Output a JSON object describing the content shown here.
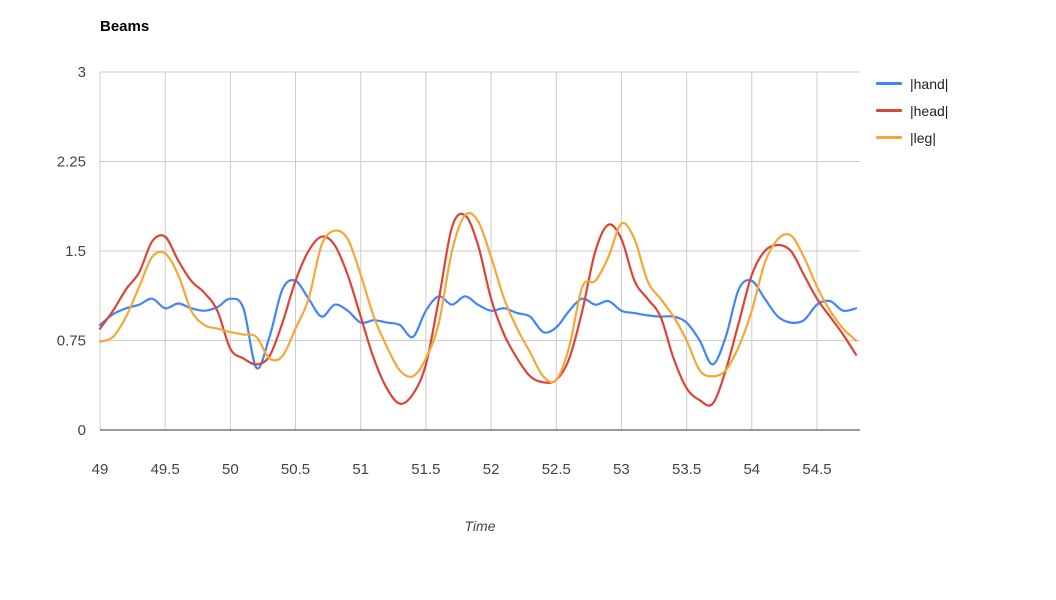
{
  "chart_data": {
    "type": "line",
    "title": "Beams",
    "xlabel": "Time",
    "ylabel": "",
    "xlim": [
      49,
      54.83
    ],
    "ylim": [
      0,
      3
    ],
    "xticks": [
      49,
      49.5,
      50,
      50.5,
      51,
      51.5,
      52,
      52.5,
      53,
      53.5,
      54,
      54.5
    ],
    "yticks": [
      0,
      0.75,
      1.5,
      2.25,
      3
    ],
    "grid": true,
    "legend_position": "right",
    "colors": {
      "grid": "#cccccc",
      "baseline": "#333333",
      "tick_text": "#444444",
      "title_text": "#000000"
    },
    "x": [
      49,
      49.1,
      49.2,
      49.3,
      49.4,
      49.5,
      49.6,
      49.7,
      49.8,
      49.9,
      50,
      50.1,
      50.2,
      50.3,
      50.4,
      50.5,
      50.6,
      50.7,
      50.8,
      50.9,
      51,
      51.1,
      51.2,
      51.3,
      51.4,
      51.5,
      51.6,
      51.7,
      51.8,
      51.9,
      52,
      52.1,
      52.2,
      52.3,
      52.4,
      52.5,
      52.6,
      52.7,
      52.8,
      52.9,
      53,
      53.1,
      53.2,
      53.3,
      53.4,
      53.5,
      53.6,
      53.7,
      53.8,
      53.9,
      54,
      54.1,
      54.2,
      54.3,
      54.4,
      54.5,
      54.6,
      54.7,
      54.8
    ],
    "series": [
      {
        "name": "|hand|",
        "color": "#4285F4",
        "values": [
          0.88,
          0.97,
          1.02,
          1.05,
          1.1,
          1.02,
          1.06,
          1.02,
          1.0,
          1.03,
          1.1,
          1.02,
          0.52,
          0.78,
          1.18,
          1.25,
          1.1,
          0.95,
          1.05,
          1.0,
          0.9,
          0.92,
          0.9,
          0.88,
          0.78,
          1.0,
          1.12,
          1.05,
          1.12,
          1.05,
          1.0,
          1.02,
          0.98,
          0.95,
          0.82,
          0.86,
          1.0,
          1.1,
          1.05,
          1.08,
          1.0,
          0.98,
          0.96,
          0.95,
          0.95,
          0.9,
          0.75,
          0.55,
          0.78,
          1.18,
          1.25,
          1.1,
          0.95,
          0.9,
          0.92,
          1.05,
          1.08,
          1.0,
          1.02
        ]
      },
      {
        "name": "|head|",
        "color": "#DB4437",
        "values": [
          0.85,
          1.0,
          1.18,
          1.32,
          1.58,
          1.62,
          1.42,
          1.25,
          1.15,
          1.0,
          0.68,
          0.6,
          0.55,
          0.62,
          0.9,
          1.25,
          1.5,
          1.62,
          1.55,
          1.3,
          0.95,
          0.6,
          0.35,
          0.22,
          0.3,
          0.55,
          1.1,
          1.7,
          1.8,
          1.55,
          1.1,
          0.8,
          0.6,
          0.45,
          0.4,
          0.42,
          0.6,
          1.0,
          1.5,
          1.72,
          1.6,
          1.25,
          1.1,
          0.95,
          0.6,
          0.35,
          0.25,
          0.22,
          0.5,
          0.9,
          1.3,
          1.5,
          1.55,
          1.5,
          1.3,
          1.1,
          0.95,
          0.8,
          0.63
        ]
      },
      {
        "name": "|leg|",
        "color": "#F6A735",
        "values": [
          0.74,
          0.78,
          0.95,
          1.2,
          1.45,
          1.48,
          1.3,
          1.0,
          0.88,
          0.85,
          0.82,
          0.8,
          0.78,
          0.6,
          0.62,
          0.85,
          1.1,
          1.55,
          1.67,
          1.6,
          1.3,
          0.95,
          0.7,
          0.5,
          0.45,
          0.6,
          0.9,
          1.5,
          1.8,
          1.75,
          1.45,
          1.1,
          0.85,
          0.65,
          0.45,
          0.42,
          0.7,
          1.2,
          1.25,
          1.45,
          1.73,
          1.6,
          1.25,
          1.1,
          0.95,
          0.75,
          0.5,
          0.45,
          0.5,
          0.7,
          1.0,
          1.4,
          1.6,
          1.63,
          1.45,
          1.2,
          1.0,
          0.85,
          0.75
        ]
      }
    ]
  }
}
